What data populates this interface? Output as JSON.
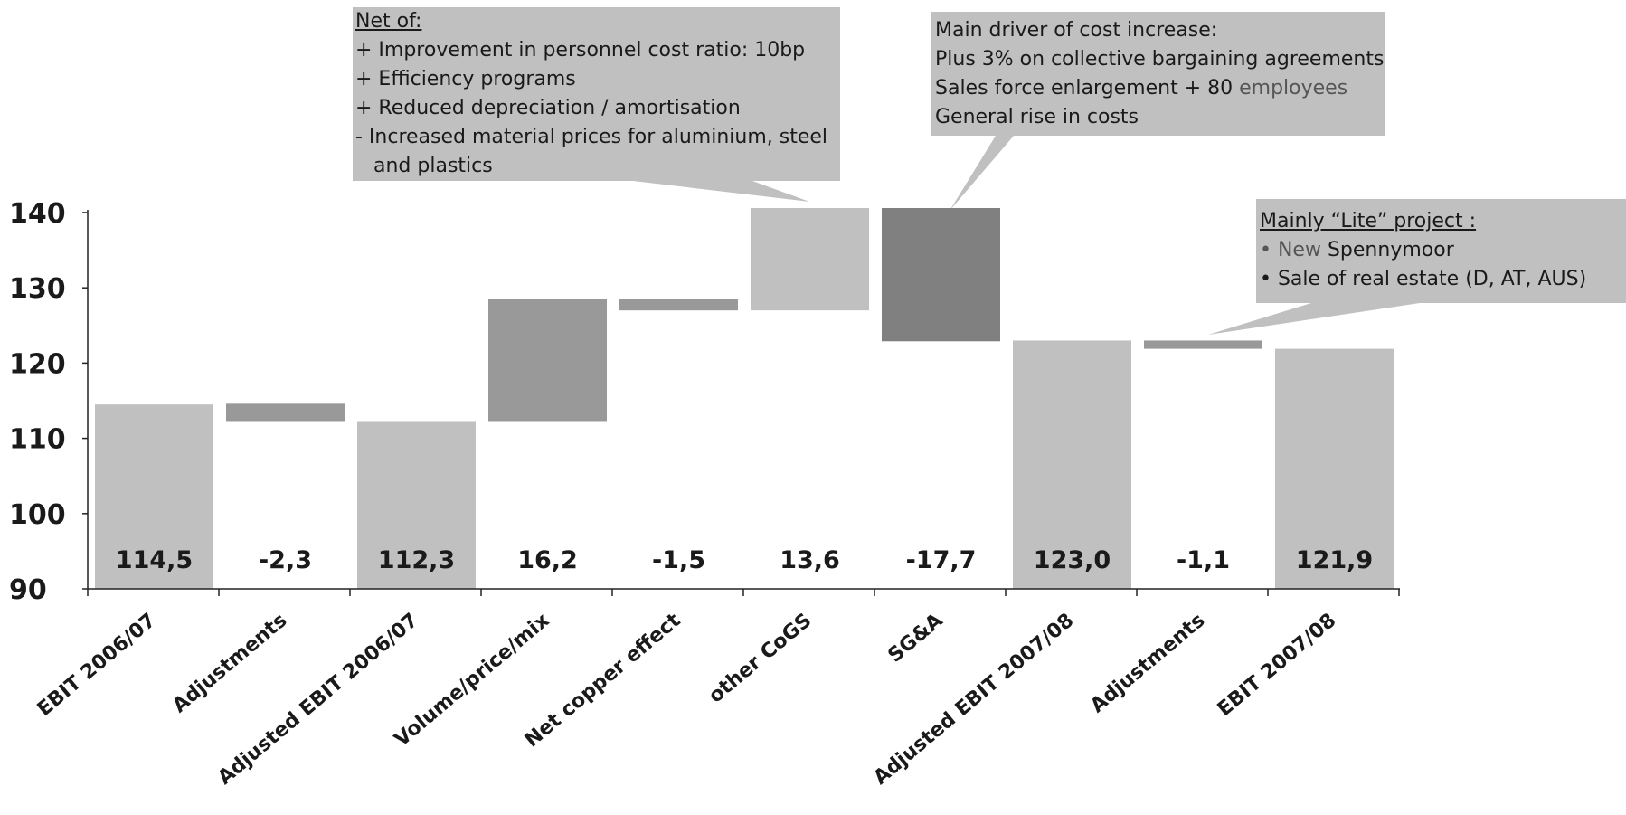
{
  "chart_data": {
    "type": "bar",
    "subtype": "waterfall",
    "categories": [
      "EBIT 2006/07",
      "Adjustments",
      "Adjusted EBIT 2006/07",
      "Volume/price/mix",
      "Net copper effect",
      "other CoGS",
      "SG&A",
      "Adjusted EBIT 2007/08",
      "Adjustments",
      "EBIT 2007/08"
    ],
    "value_labels": [
      "114,5",
      "-2,3",
      "112,3",
      "16,2",
      "-1,5",
      "13,6",
      "-17,7",
      "123,0",
      "-1,1",
      "121,9"
    ],
    "bars": [
      {
        "base": 90,
        "top": 114.5,
        "kind": "total"
      },
      {
        "base": 112.3,
        "top": 114.6,
        "kind": "decrease"
      },
      {
        "base": 90,
        "top": 112.3,
        "kind": "total"
      },
      {
        "base": 112.3,
        "top": 128.5,
        "kind": "increase"
      },
      {
        "base": 127.0,
        "top": 128.5,
        "kind": "decrease"
      },
      {
        "base": 127.0,
        "top": 140.6,
        "kind": "increase-light"
      },
      {
        "base": 122.9,
        "top": 140.6,
        "kind": "decrease-dark"
      },
      {
        "base": 90,
        "top": 123.0,
        "kind": "total"
      },
      {
        "base": 121.9,
        "top": 123.0,
        "kind": "decrease"
      },
      {
        "base": 90,
        "top": 121.9,
        "kind": "total"
      }
    ],
    "ylim": [
      90,
      140
    ],
    "yticks": [
      "90",
      "100",
      "110",
      "120",
      "130",
      "140"
    ],
    "ytick_values": [
      90,
      100,
      110,
      120,
      130,
      140
    ],
    "grid": false,
    "colors": {
      "total": "#c0c0c0",
      "increase-light": "#c0c0c0",
      "decrease": "#999999",
      "increase": "#999999",
      "decrease-dark": "#808080",
      "callout": "#c0c0c0",
      "text": "#1a1a1a"
    }
  },
  "callouts": {
    "net_of": {
      "heading": "Net of:",
      "lines": [
        "+ Improvement in personnel cost ratio: 10bp",
        "+ Efficiency programs",
        "+ Reduced depreciation / amortisation",
        "- Increased material prices for aluminium, steel",
        "and plastics"
      ]
    },
    "main_driver": {
      "lines": [
        "Main driver of cost increase:",
        "Plus 3% on collective bargaining agreements",
        "Sales force enlargement + 80",
        "employees",
        "General rise in costs"
      ]
    },
    "lite_project": {
      "heading": "Mainly “Lite” project :",
      "bullet1_prefix": "• New",
      "bullet1_rest": "Spennymoor",
      "bullet2": "• Sale of real estate (D, AT, AUS)"
    }
  }
}
